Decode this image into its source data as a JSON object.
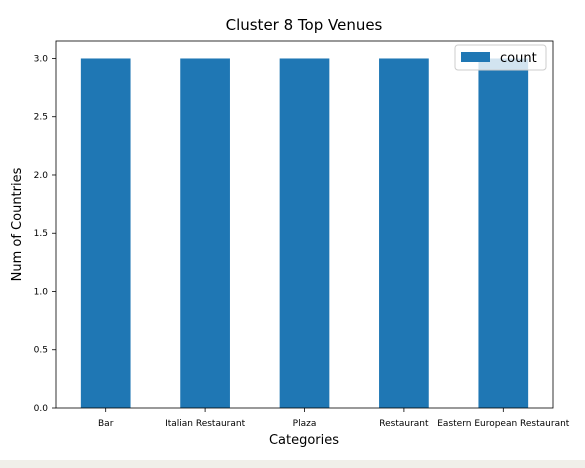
{
  "chart_data": {
    "type": "bar",
    "title": "Cluster 8 Top Venues",
    "xlabel": "Categories",
    "ylabel": "Num of Countries",
    "categories": [
      "Bar",
      "Italian Restaurant",
      "Plaza",
      "Restaurant",
      "Eastern European Restaurant"
    ],
    "series": [
      {
        "name": "count",
        "values": [
          3,
          3,
          3,
          3,
          3
        ],
        "color": "#1f77b4"
      }
    ],
    "ylim": [
      0,
      3.15
    ],
    "yticks": [
      "0.0",
      "0.5",
      "1.0",
      "1.5",
      "2.0",
      "2.5",
      "3.0"
    ],
    "grid": false,
    "legend_position": "top-right"
  }
}
